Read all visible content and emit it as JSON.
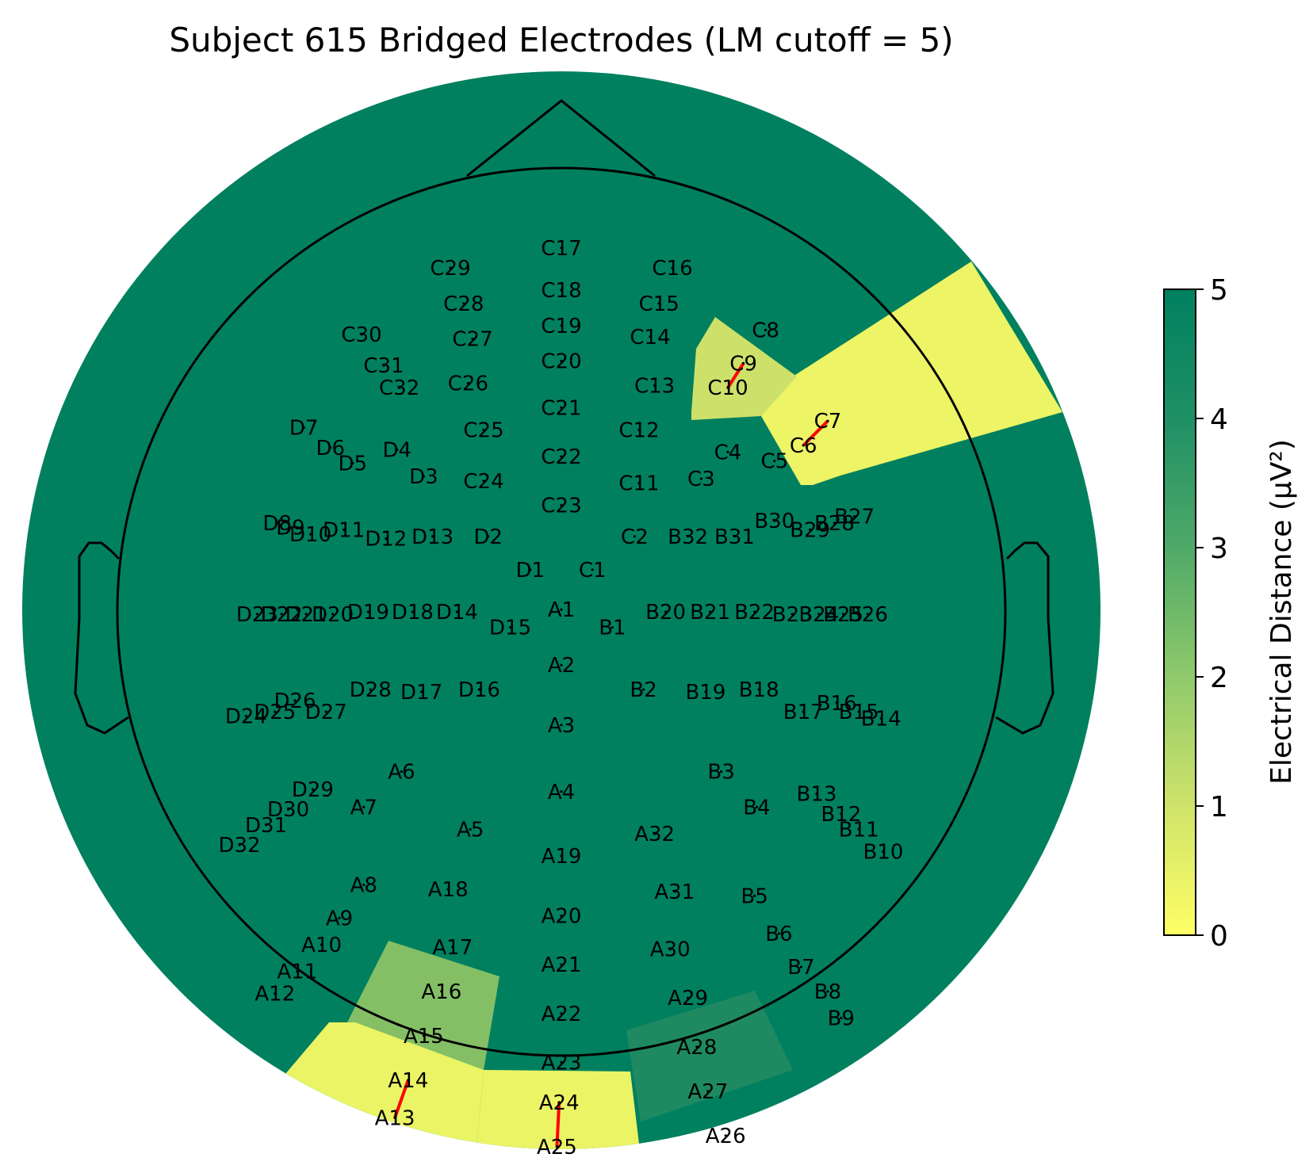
{
  "chart_data": {
    "type": "heatmap",
    "title": "Subject 615 Bridged Electrodes (LM cutoff = 5)",
    "colorbar": {
      "label": "Electrical Distance (μV²)",
      "min": 0,
      "max": 5,
      "ticks": [
        "0",
        "1",
        "2",
        "3",
        "4",
        "5"
      ],
      "colors": [
        "#ffff66",
        "#00805f"
      ]
    },
    "background_color": "#00805f",
    "bridge_line_color": "#ff0000",
    "electrodes": [
      {
        "name": "C17",
        "x": 0.0,
        "y": 0.82
      },
      {
        "name": "C18",
        "x": 0.0,
        "y": 0.725
      },
      {
        "name": "C19",
        "x": 0.0,
        "y": 0.645
      },
      {
        "name": "C20",
        "x": 0.0,
        "y": 0.565
      },
      {
        "name": "C21",
        "x": 0.0,
        "y": 0.46
      },
      {
        "name": "C22",
        "x": 0.0,
        "y": 0.35
      },
      {
        "name": "C23",
        "x": 0.0,
        "y": 0.24
      },
      {
        "name": "C16",
        "x": 0.25,
        "y": 0.775
      },
      {
        "name": "C15",
        "x": 0.22,
        "y": 0.695
      },
      {
        "name": "C14",
        "x": 0.2,
        "y": 0.62
      },
      {
        "name": "C13",
        "x": 0.21,
        "y": 0.51
      },
      {
        "name": "C12",
        "x": 0.175,
        "y": 0.41
      },
      {
        "name": "C11",
        "x": 0.175,
        "y": 0.29
      },
      {
        "name": "C29",
        "x": -0.25,
        "y": 0.775
      },
      {
        "name": "C28",
        "x": -0.22,
        "y": 0.695
      },
      {
        "name": "C27",
        "x": -0.2,
        "y": 0.615
      },
      {
        "name": "C26",
        "x": -0.21,
        "y": 0.515
      },
      {
        "name": "C25",
        "x": -0.175,
        "y": 0.41
      },
      {
        "name": "C24",
        "x": -0.175,
        "y": 0.295
      },
      {
        "name": "C30",
        "x": -0.45,
        "y": 0.625
      },
      {
        "name": "C31",
        "x": -0.4,
        "y": 0.555
      },
      {
        "name": "C32",
        "x": -0.365,
        "y": 0.505
      },
      {
        "name": "C8",
        "x": 0.46,
        "y": 0.635
      },
      {
        "name": "C9",
        "x": 0.41,
        "y": 0.56
      },
      {
        "name": "C10",
        "x": 0.375,
        "y": 0.505
      },
      {
        "name": "C7",
        "x": 0.6,
        "y": 0.43
      },
      {
        "name": "C6",
        "x": 0.545,
        "y": 0.375
      },
      {
        "name": "C5",
        "x": 0.48,
        "y": 0.34
      },
      {
        "name": "C4",
        "x": 0.375,
        "y": 0.36
      },
      {
        "name": "C3",
        "x": 0.315,
        "y": 0.3
      },
      {
        "name": "C2",
        "x": 0.165,
        "y": 0.17
      },
      {
        "name": "C1",
        "x": 0.07,
        "y": 0.095
      },
      {
        "name": "D1",
        "x": -0.07,
        "y": 0.095
      },
      {
        "name": "D2",
        "x": -0.165,
        "y": 0.17
      },
      {
        "name": "D3",
        "x": -0.31,
        "y": 0.305
      },
      {
        "name": "D4",
        "x": -0.37,
        "y": 0.365
      },
      {
        "name": "D5",
        "x": -0.47,
        "y": 0.335
      },
      {
        "name": "D6",
        "x": -0.52,
        "y": 0.37
      },
      {
        "name": "D7",
        "x": -0.58,
        "y": 0.415
      },
      {
        "name": "D8",
        "x": -0.64,
        "y": 0.2
      },
      {
        "name": "D9",
        "x": -0.61,
        "y": 0.19
      },
      {
        "name": "D10",
        "x": -0.565,
        "y": 0.175
      },
      {
        "name": "D11",
        "x": -0.49,
        "y": 0.185
      },
      {
        "name": "D12",
        "x": -0.395,
        "y": 0.165
      },
      {
        "name": "D13",
        "x": -0.29,
        "y": 0.17
      },
      {
        "name": "D14",
        "x": -0.235,
        "y": 0.0
      },
      {
        "name": "D15",
        "x": -0.115,
        "y": -0.035
      },
      {
        "name": "D18",
        "x": -0.335,
        "y": 0.0
      },
      {
        "name": "D19",
        "x": -0.435,
        "y": 0.0
      },
      {
        "name": "D20",
        "x": -0.515,
        "y": -0.005
      },
      {
        "name": "D21",
        "x": -0.575,
        "y": -0.005
      },
      {
        "name": "D22",
        "x": -0.63,
        "y": -0.005
      },
      {
        "name": "D23",
        "x": -0.685,
        "y": -0.005
      },
      {
        "name": "D16",
        "x": -0.185,
        "y": -0.175
      },
      {
        "name": "D17",
        "x": -0.315,
        "y": -0.18
      },
      {
        "name": "D28",
        "x": -0.43,
        "y": -0.175
      },
      {
        "name": "D26",
        "x": -0.6,
        "y": -0.2
      },
      {
        "name": "D27",
        "x": -0.53,
        "y": -0.225
      },
      {
        "name": "D25",
        "x": -0.645,
        "y": -0.225
      },
      {
        "name": "D24",
        "x": -0.71,
        "y": -0.235
      },
      {
        "name": "D29",
        "x": -0.56,
        "y": -0.4
      },
      {
        "name": "D30",
        "x": -0.615,
        "y": -0.445
      },
      {
        "name": "D31",
        "x": -0.665,
        "y": -0.48
      },
      {
        "name": "D32",
        "x": -0.725,
        "y": -0.525
      },
      {
        "name": "A1",
        "x": 0.0,
        "y": 0.005
      },
      {
        "name": "A2",
        "x": 0.0,
        "y": -0.12
      },
      {
        "name": "A3",
        "x": 0.0,
        "y": -0.255
      },
      {
        "name": "A4",
        "x": 0.0,
        "y": -0.405
      },
      {
        "name": "A19",
        "x": 0.0,
        "y": -0.55
      },
      {
        "name": "A20",
        "x": 0.0,
        "y": -0.685
      },
      {
        "name": "A21",
        "x": 0.0,
        "y": -0.795
      },
      {
        "name": "A22",
        "x": 0.0,
        "y": -0.905
      },
      {
        "name": "A23",
        "x": 0.0,
        "y": -1.015
      },
      {
        "name": "A24",
        "x": -0.005,
        "y": -1.105
      },
      {
        "name": "A25",
        "x": -0.01,
        "y": -1.205
      },
      {
        "name": "A5",
        "x": -0.205,
        "y": -0.49
      },
      {
        "name": "A6",
        "x": -0.36,
        "y": -0.36
      },
      {
        "name": "A7",
        "x": -0.445,
        "y": -0.44
      },
      {
        "name": "A8",
        "x": -0.445,
        "y": -0.615
      },
      {
        "name": "A9",
        "x": -0.5,
        "y": -0.69
      },
      {
        "name": "A10",
        "x": -0.54,
        "y": -0.75
      },
      {
        "name": "A11",
        "x": -0.595,
        "y": -0.81
      },
      {
        "name": "A12",
        "x": -0.645,
        "y": -0.86
      },
      {
        "name": "A13",
        "x": -0.375,
        "y": -1.14
      },
      {
        "name": "A14",
        "x": -0.345,
        "y": -1.055
      },
      {
        "name": "A15",
        "x": -0.31,
        "y": -0.955
      },
      {
        "name": "A16",
        "x": -0.27,
        "y": -0.855
      },
      {
        "name": "A17",
        "x": -0.245,
        "y": -0.755
      },
      {
        "name": "A18",
        "x": -0.255,
        "y": -0.625
      },
      {
        "name": "A26",
        "x": 0.37,
        "y": -1.18
      },
      {
        "name": "A27",
        "x": 0.33,
        "y": -1.08
      },
      {
        "name": "A28",
        "x": 0.305,
        "y": -0.98
      },
      {
        "name": "A29",
        "x": 0.285,
        "y": -0.87
      },
      {
        "name": "A30",
        "x": 0.245,
        "y": -0.76
      },
      {
        "name": "A31",
        "x": 0.255,
        "y": -0.63
      },
      {
        "name": "A32",
        "x": 0.21,
        "y": -0.5
      },
      {
        "name": "B1",
        "x": 0.115,
        "y": -0.035
      },
      {
        "name": "B2",
        "x": 0.185,
        "y": -0.175
      },
      {
        "name": "B19",
        "x": 0.325,
        "y": -0.18
      },
      {
        "name": "B18",
        "x": 0.445,
        "y": -0.175
      },
      {
        "name": "B17",
        "x": 0.545,
        "y": -0.225
      },
      {
        "name": "B16",
        "x": 0.62,
        "y": -0.205
      },
      {
        "name": "B15",
        "x": 0.67,
        "y": -0.225
      },
      {
        "name": "B14",
        "x": 0.72,
        "y": -0.24
      },
      {
        "name": "B20",
        "x": 0.235,
        "y": 0.0
      },
      {
        "name": "B21",
        "x": 0.335,
        "y": 0.0
      },
      {
        "name": "B22",
        "x": 0.435,
        "y": 0.0
      },
      {
        "name": "B23",
        "x": 0.52,
        "y": -0.005
      },
      {
        "name": "B24",
        "x": 0.58,
        "y": -0.005
      },
      {
        "name": "B25",
        "x": 0.635,
        "y": -0.005
      },
      {
        "name": "B26",
        "x": 0.69,
        "y": -0.005
      },
      {
        "name": "B27",
        "x": 0.66,
        "y": 0.215
      },
      {
        "name": "B28",
        "x": 0.615,
        "y": 0.2
      },
      {
        "name": "B29",
        "x": 0.56,
        "y": 0.185
      },
      {
        "name": "B30",
        "x": 0.48,
        "y": 0.205
      },
      {
        "name": "B31",
        "x": 0.39,
        "y": 0.17
      },
      {
        "name": "B32",
        "x": 0.285,
        "y": 0.17
      },
      {
        "name": "B3",
        "x": 0.36,
        "y": -0.36
      },
      {
        "name": "B4",
        "x": 0.44,
        "y": -0.44
      },
      {
        "name": "B13",
        "x": 0.575,
        "y": -0.41
      },
      {
        "name": "B12",
        "x": 0.63,
        "y": -0.455
      },
      {
        "name": "B11",
        "x": 0.67,
        "y": -0.49
      },
      {
        "name": "B10",
        "x": 0.725,
        "y": -0.54
      },
      {
        "name": "B5",
        "x": 0.435,
        "y": -0.64
      },
      {
        "name": "B6",
        "x": 0.49,
        "y": -0.725
      },
      {
        "name": "B7",
        "x": 0.54,
        "y": -0.8
      },
      {
        "name": "B8",
        "x": 0.6,
        "y": -0.855
      },
      {
        "name": "B9",
        "x": 0.63,
        "y": -0.915
      }
    ],
    "bridges": [
      {
        "a": "C9",
        "b": "C10",
        "value": 1.2
      },
      {
        "a": "C7",
        "b": "C6",
        "value": 0.4
      },
      {
        "a": "A14",
        "b": "A13",
        "value": 0.4
      },
      {
        "a": "A24",
        "b": "A25",
        "value": 0.3
      },
      {
        "a": "A15",
        "b": "A16",
        "value": 2.2
      },
      {
        "a": "A27",
        "b": "A28",
        "value": 4.2
      }
    ]
  }
}
